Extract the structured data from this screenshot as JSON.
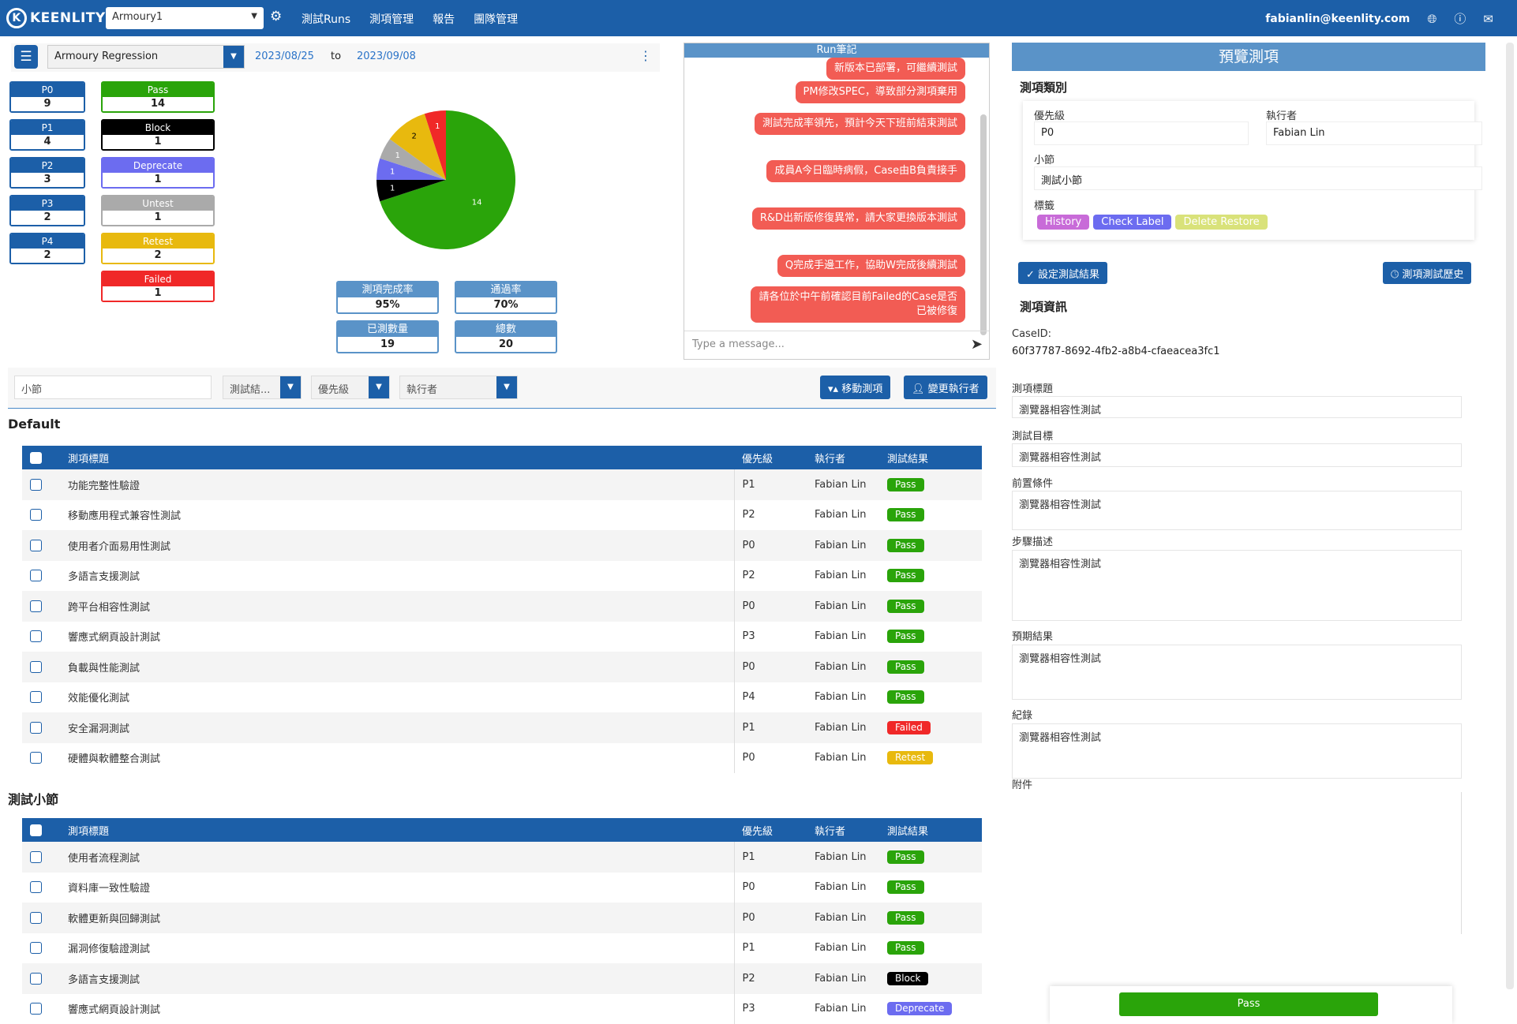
{
  "topbar": {
    "brand": "KEENLITY",
    "project": "Armoury1",
    "nav": [
      "測試Runs",
      "測項管理",
      "報告",
      "團隊管理"
    ],
    "user": "fabianlin@keenlity.com"
  },
  "filter": {
    "run": "Armoury Regression",
    "from": "2023/08/25",
    "to_label": "to",
    "to": "2023/09/08"
  },
  "priority_stats": [
    {
      "label": "P0",
      "value": "9"
    },
    {
      "label": "P1",
      "value": "4"
    },
    {
      "label": "P2",
      "value": "3"
    },
    {
      "label": "P3",
      "value": "2"
    },
    {
      "label": "P4",
      "value": "2"
    }
  ],
  "result_stats": [
    {
      "label": "Pass",
      "value": "14",
      "color": "#2aa40a",
      "text": "#fff"
    },
    {
      "label": "Block",
      "value": "1",
      "color": "#000000",
      "text": "#fff"
    },
    {
      "label": "Deprecate",
      "value": "1",
      "color": "#6c6cf0",
      "text": "#fff"
    },
    {
      "label": "Untest",
      "value": "1",
      "color": "#aaaaaa",
      "text": "#fff"
    },
    {
      "label": "Retest",
      "value": "2",
      "color": "#e8b90e",
      "text": "#fff"
    },
    {
      "label": "Failed",
      "value": "1",
      "color": "#f02828",
      "text": "#fff"
    }
  ],
  "pie": {
    "slices": [
      {
        "label": "14",
        "value": 14,
        "color": "#2aa40a"
      },
      {
        "label": "1",
        "value": 1,
        "color": "#000000"
      },
      {
        "label": "1",
        "value": 1,
        "color": "#6c6cf0"
      },
      {
        "label": "1",
        "value": 1,
        "color": "#aaaaaa"
      },
      {
        "label": "2",
        "value": 2,
        "color": "#e8b90e"
      },
      {
        "label": "1",
        "value": 1,
        "color": "#f02828"
      }
    ]
  },
  "metrics": [
    {
      "label": "測項完成率",
      "value": "95%"
    },
    {
      "label": "通過率",
      "value": "70%"
    },
    {
      "label": "已測數量",
      "value": "19"
    },
    {
      "label": "總數",
      "value": "20"
    }
  ],
  "chat": {
    "title": "Run筆記",
    "messages": [
      "新版本已部署，可繼續測試",
      "PM修改SPEC，導致部分測項棄用",
      "測試完成率領先，預計今天下班前結束測試",
      "成員A今日臨時病假，Case由B負責接手",
      "R&D出新版修復異常，請大家更換版本測試",
      "Q完成手邊工作，協助W完成後續測試",
      "請各位於中午前確認目前Failed的Case是否已被修復"
    ],
    "placeholder": "Type a message..."
  },
  "toolbar": {
    "section_placeholder": "小節",
    "result_sel": "測試結...",
    "priority_sel": "優先級",
    "assignee_sel": "執行者",
    "move_btn": "移動測項",
    "change_btn": "變更執行者"
  },
  "table_headers": {
    "title": "測項標題",
    "priority": "優先級",
    "assignee": "執行者",
    "result": "測試結果"
  },
  "groups": [
    {
      "name": "Default",
      "rows": [
        {
          "title": "功能完整性驗證",
          "priority": "P1",
          "assignee": "Fabian Lin",
          "result": "Pass"
        },
        {
          "title": "移動應用程式兼容性測試",
          "priority": "P2",
          "assignee": "Fabian Lin",
          "result": "Pass"
        },
        {
          "title": "使用者介面易用性測試",
          "priority": "P0",
          "assignee": "Fabian Lin",
          "result": "Pass"
        },
        {
          "title": "多語言支援測試",
          "priority": "P2",
          "assignee": "Fabian Lin",
          "result": "Pass"
        },
        {
          "title": "跨平台相容性測試",
          "priority": "P0",
          "assignee": "Fabian Lin",
          "result": "Pass"
        },
        {
          "title": "響應式網頁設計測試",
          "priority": "P3",
          "assignee": "Fabian Lin",
          "result": "Pass"
        },
        {
          "title": "負載與性能測試",
          "priority": "P0",
          "assignee": "Fabian Lin",
          "result": "Pass"
        },
        {
          "title": "效能優化測試",
          "priority": "P4",
          "assignee": "Fabian Lin",
          "result": "Pass"
        },
        {
          "title": "安全漏洞測試",
          "priority": "P1",
          "assignee": "Fabian Lin",
          "result": "Failed"
        },
        {
          "title": "硬體與軟體整合測試",
          "priority": "P0",
          "assignee": "Fabian Lin",
          "result": "Retest"
        }
      ]
    },
    {
      "name": "測試小節",
      "rows": [
        {
          "title": "使用者流程測試",
          "priority": "P1",
          "assignee": "Fabian Lin",
          "result": "Pass"
        },
        {
          "title": "資料庫一致性驗證",
          "priority": "P0",
          "assignee": "Fabian Lin",
          "result": "Pass"
        },
        {
          "title": "軟體更新與回歸測試",
          "priority": "P0",
          "assignee": "Fabian Lin",
          "result": "Pass"
        },
        {
          "title": "漏洞修復驗證測試",
          "priority": "P1",
          "assignee": "Fabian Lin",
          "result": "Pass"
        },
        {
          "title": "多語言支援測試",
          "priority": "P2",
          "assignee": "Fabian Lin",
          "result": "Block"
        },
        {
          "title": "響應式網頁設計測試",
          "priority": "P3",
          "assignee": "Fabian Lin",
          "result": "Deprecate"
        }
      ]
    }
  ],
  "result_colors": {
    "Pass": "#2aa40a",
    "Failed": "#f02828",
    "Retest": "#e8b90e",
    "Block": "#000000",
    "Deprecate": "#6c6cf0",
    "Untest": "#aaaaaa"
  },
  "preview": {
    "title": "預覽測項",
    "category_title": "測項類別",
    "priority_label": "優先級",
    "priority": "P0",
    "assignee_label": "執行者",
    "assignee": "Fabian Lin",
    "section_label": "小節",
    "section": "測試小節",
    "tags_label": "標籤",
    "tags": [
      {
        "text": "History",
        "color": "#c86bd8"
      },
      {
        "text": "Check Label",
        "color": "#6c6cf0"
      },
      {
        "text": "Delete Restore",
        "color": "#d9e27a"
      }
    ],
    "set_result_btn": "設定測試結果",
    "history_btn": "測項測試歷史",
    "info_title": "測項資訊",
    "caseid_label": "CaseID:",
    "caseid": "60f37787-8692-4fb2-a8b4-cfaeacea3fc1",
    "fields": [
      {
        "label": "測項標題",
        "value": "瀏覽器相容性測試"
      },
      {
        "label": "測試目標",
        "value": "瀏覽器相容性測試"
      },
      {
        "label": "前置條件",
        "value": "瀏覽器相容性測試"
      },
      {
        "label": "步驟描述",
        "value": "瀏覽器相容性測試"
      },
      {
        "label": "預期結果",
        "value": "瀏覽器相容性測試"
      },
      {
        "label": "紀錄",
        "value": "瀏覽器相容性測試"
      }
    ],
    "attach_label": "附件",
    "pass_btn": "Pass"
  }
}
